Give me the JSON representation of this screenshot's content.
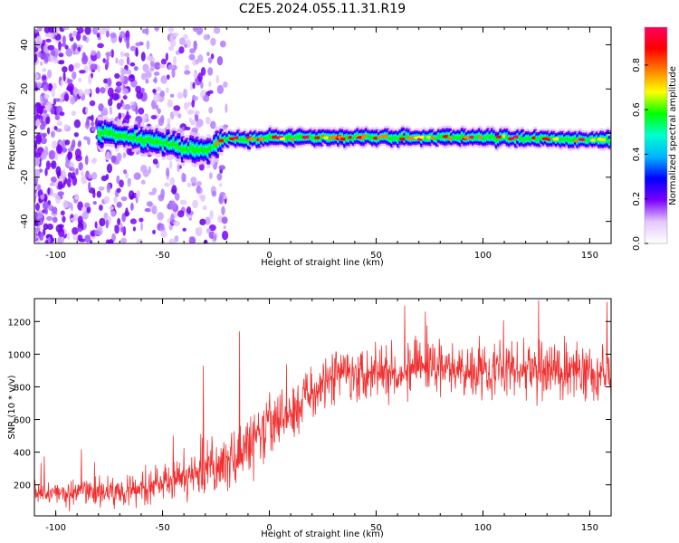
{
  "title": "C2E5.2024.055.11.31.R19",
  "chart_data": [
    {
      "type": "heatmap",
      "xlabel": "Height of straight line (km)",
      "ylabel": "Frequency (Hz)",
      "xlim": [
        -110,
        160
      ],
      "ylim": [
        -50,
        48
      ],
      "x_ticks": [
        -100,
        -50,
        0,
        50,
        100,
        150
      ],
      "y_ticks": [
        -40,
        -20,
        0,
        20,
        40
      ],
      "colorbar": {
        "label": "Normalized spectral amplitude",
        "range": [
          0,
          0.97
        ],
        "ticks": [
          0.0,
          0.2,
          0.4,
          0.6,
          0.8
        ],
        "colors": [
          "#ffffff",
          "#e4c8ff",
          "#7a00ff",
          "#0000ff",
          "#00b4ff",
          "#00ffd0",
          "#00ff00",
          "#ffff00",
          "#ff8000",
          "#ff0000",
          "#ff0060"
        ]
      },
      "ridge_frequency": [
        {
          "x": -75,
          "y": 0
        },
        {
          "x": -60,
          "y": -3
        },
        {
          "x": -50,
          "y": -4
        },
        {
          "x": -40,
          "y": -7
        },
        {
          "x": -30,
          "y": -8
        },
        {
          "x": -22,
          "y": -3
        },
        {
          "x": -10,
          "y": -3
        },
        {
          "x": 0,
          "y": -2
        },
        {
          "x": 10,
          "y": -2
        },
        {
          "x": 50,
          "y": -2
        },
        {
          "x": 100,
          "y": -2
        },
        {
          "x": 160,
          "y": -3
        }
      ]
    },
    {
      "type": "line",
      "xlabel": "Height of straight line (km)",
      "ylabel": "SNR (10 * v/v)",
      "xlim": [
        -110,
        160
      ],
      "ylim": [
        10,
        1340
      ],
      "x_ticks": [
        -100,
        -50,
        0,
        50,
        100,
        150
      ],
      "y_ticks": [
        200,
        400,
        600,
        800,
        1000,
        1200
      ],
      "series": [
        {
          "color": "#f03030",
          "mean": [
            {
              "x": -110,
              "y": 150
            },
            {
              "x": -80,
              "y": 150
            },
            {
              "x": -60,
              "y": 180
            },
            {
              "x": -40,
              "y": 240
            },
            {
              "x": -20,
              "y": 330
            },
            {
              "x": -10,
              "y": 440
            },
            {
              "x": 0,
              "y": 550
            },
            {
              "x": 10,
              "y": 650
            },
            {
              "x": 20,
              "y": 760
            },
            {
              "x": 30,
              "y": 880
            },
            {
              "x": 45,
              "y": 900
            },
            {
              "x": 70,
              "y": 910
            },
            {
              "x": 100,
              "y": 910
            },
            {
              "x": 130,
              "y": 900
            },
            {
              "x": 160,
              "y": 880
            }
          ],
          "spread": [
            {
              "x": -110,
              "y": 70
            },
            {
              "x": -60,
              "y": 90
            },
            {
              "x": -30,
              "y": 150
            },
            {
              "x": 0,
              "y": 180
            },
            {
              "x": 30,
              "y": 150
            },
            {
              "x": 160,
              "y": 160
            }
          ],
          "peaks": [
            {
              "x": -14,
              "y": 1140
            },
            {
              "x": -31,
              "y": 930
            },
            {
              "x": 73,
              "y": 1260
            },
            {
              "x": 126,
              "y": 1330
            },
            {
              "x": 158,
              "y": 1320
            }
          ]
        }
      ]
    }
  ]
}
